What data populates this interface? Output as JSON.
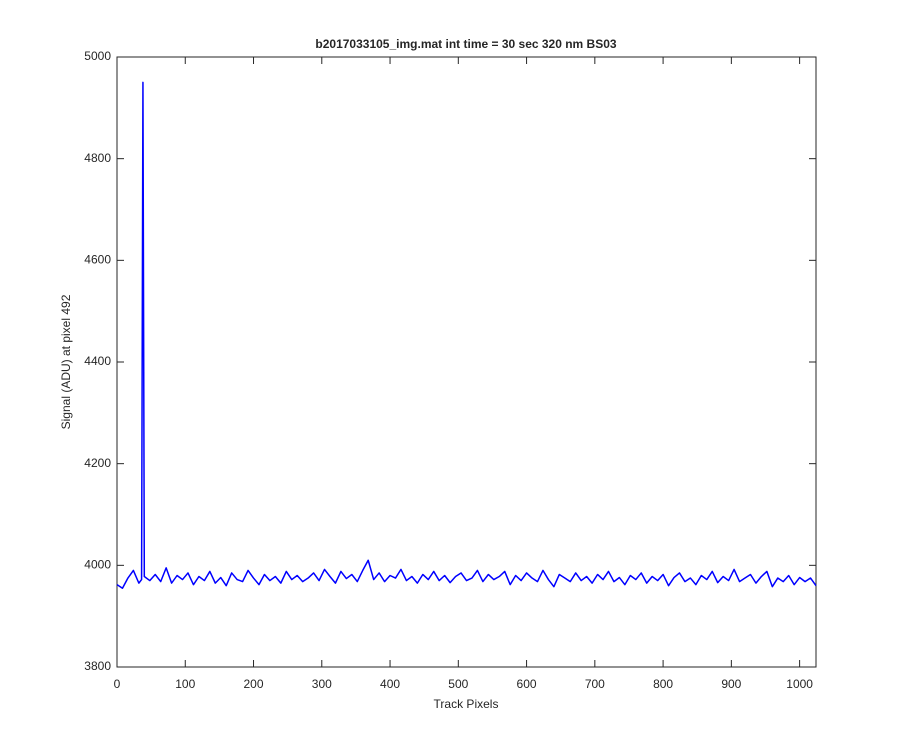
{
  "chart_data": {
    "type": "line",
    "title": "b2017033105_img.mat int time = 30 sec  320 nm BS03",
    "xlabel": "Track Pixels",
    "ylabel": "Signal (ADU) at pixel 492",
    "x": [
      0,
      8,
      16,
      24,
      32,
      36,
      38,
      40,
      48,
      56,
      64,
      72,
      80,
      88,
      96,
      104,
      112,
      120,
      128,
      136,
      144,
      152,
      160,
      168,
      176,
      184,
      192,
      200,
      208,
      216,
      224,
      232,
      240,
      248,
      256,
      264,
      272,
      280,
      288,
      296,
      304,
      312,
      320,
      328,
      336,
      344,
      352,
      360,
      368,
      376,
      384,
      392,
      400,
      408,
      416,
      424,
      432,
      440,
      448,
      456,
      464,
      472,
      480,
      488,
      496,
      504,
      512,
      520,
      528,
      536,
      544,
      552,
      560,
      568,
      576,
      584,
      592,
      600,
      608,
      616,
      624,
      632,
      640,
      648,
      656,
      664,
      672,
      680,
      688,
      696,
      704,
      712,
      720,
      728,
      736,
      744,
      752,
      760,
      768,
      776,
      784,
      792,
      800,
      808,
      816,
      824,
      832,
      840,
      848,
      856,
      864,
      872,
      880,
      888,
      896,
      904,
      912,
      920,
      928,
      936,
      944,
      952,
      960,
      968,
      976,
      984,
      992,
      1000,
      1008,
      1016,
      1024
    ],
    "series": [
      {
        "color": "#0000ff",
        "values": [
          3962,
          3955,
          3975,
          3990,
          3965,
          3972,
          4950,
          3978,
          3970,
          3982,
          3968,
          3995,
          3965,
          3980,
          3972,
          3985,
          3962,
          3978,
          3970,
          3988,
          3965,
          3976,
          3960,
          3985,
          3972,
          3968,
          3990,
          3975,
          3962,
          3982,
          3970,
          3978,
          3965,
          3988,
          3972,
          3980,
          3968,
          3975,
          3985,
          3970,
          3992,
          3978,
          3965,
          3988,
          3974,
          3982,
          3968,
          3990,
          4010,
          3972,
          3985,
          3968,
          3980,
          3975,
          3992,
          3970,
          3978,
          3965,
          3982,
          3972,
          3988,
          3970,
          3980,
          3966,
          3978,
          3985,
          3970,
          3975,
          3990,
          3968,
          3982,
          3972,
          3978,
          3988,
          3962,
          3980,
          3970,
          3985,
          3975,
          3968,
          3990,
          3972,
          3958,
          3982,
          3975,
          3968,
          3985,
          3970,
          3978,
          3965,
          3982,
          3972,
          3988,
          3968,
          3976,
          3962,
          3980,
          3972,
          3985,
          3965,
          3978,
          3970,
          3982,
          3960,
          3976,
          3985,
          3968,
          3975,
          3962,
          3980,
          3972,
          3988,
          3966,
          3978,
          3970,
          3992,
          3968,
          3975,
          3982,
          3965,
          3978,
          3988,
          3958,
          3975,
          3968,
          3980,
          3962,
          3976,
          3968,
          3975,
          3960
        ]
      }
    ],
    "xlim": [
      0,
      1024
    ],
    "ylim": [
      3800,
      5000
    ],
    "xticks": [
      0,
      100,
      200,
      300,
      400,
      500,
      600,
      700,
      800,
      900,
      1000
    ],
    "yticks": [
      3800,
      4000,
      4200,
      4400,
      4600,
      4800,
      5000
    ]
  }
}
